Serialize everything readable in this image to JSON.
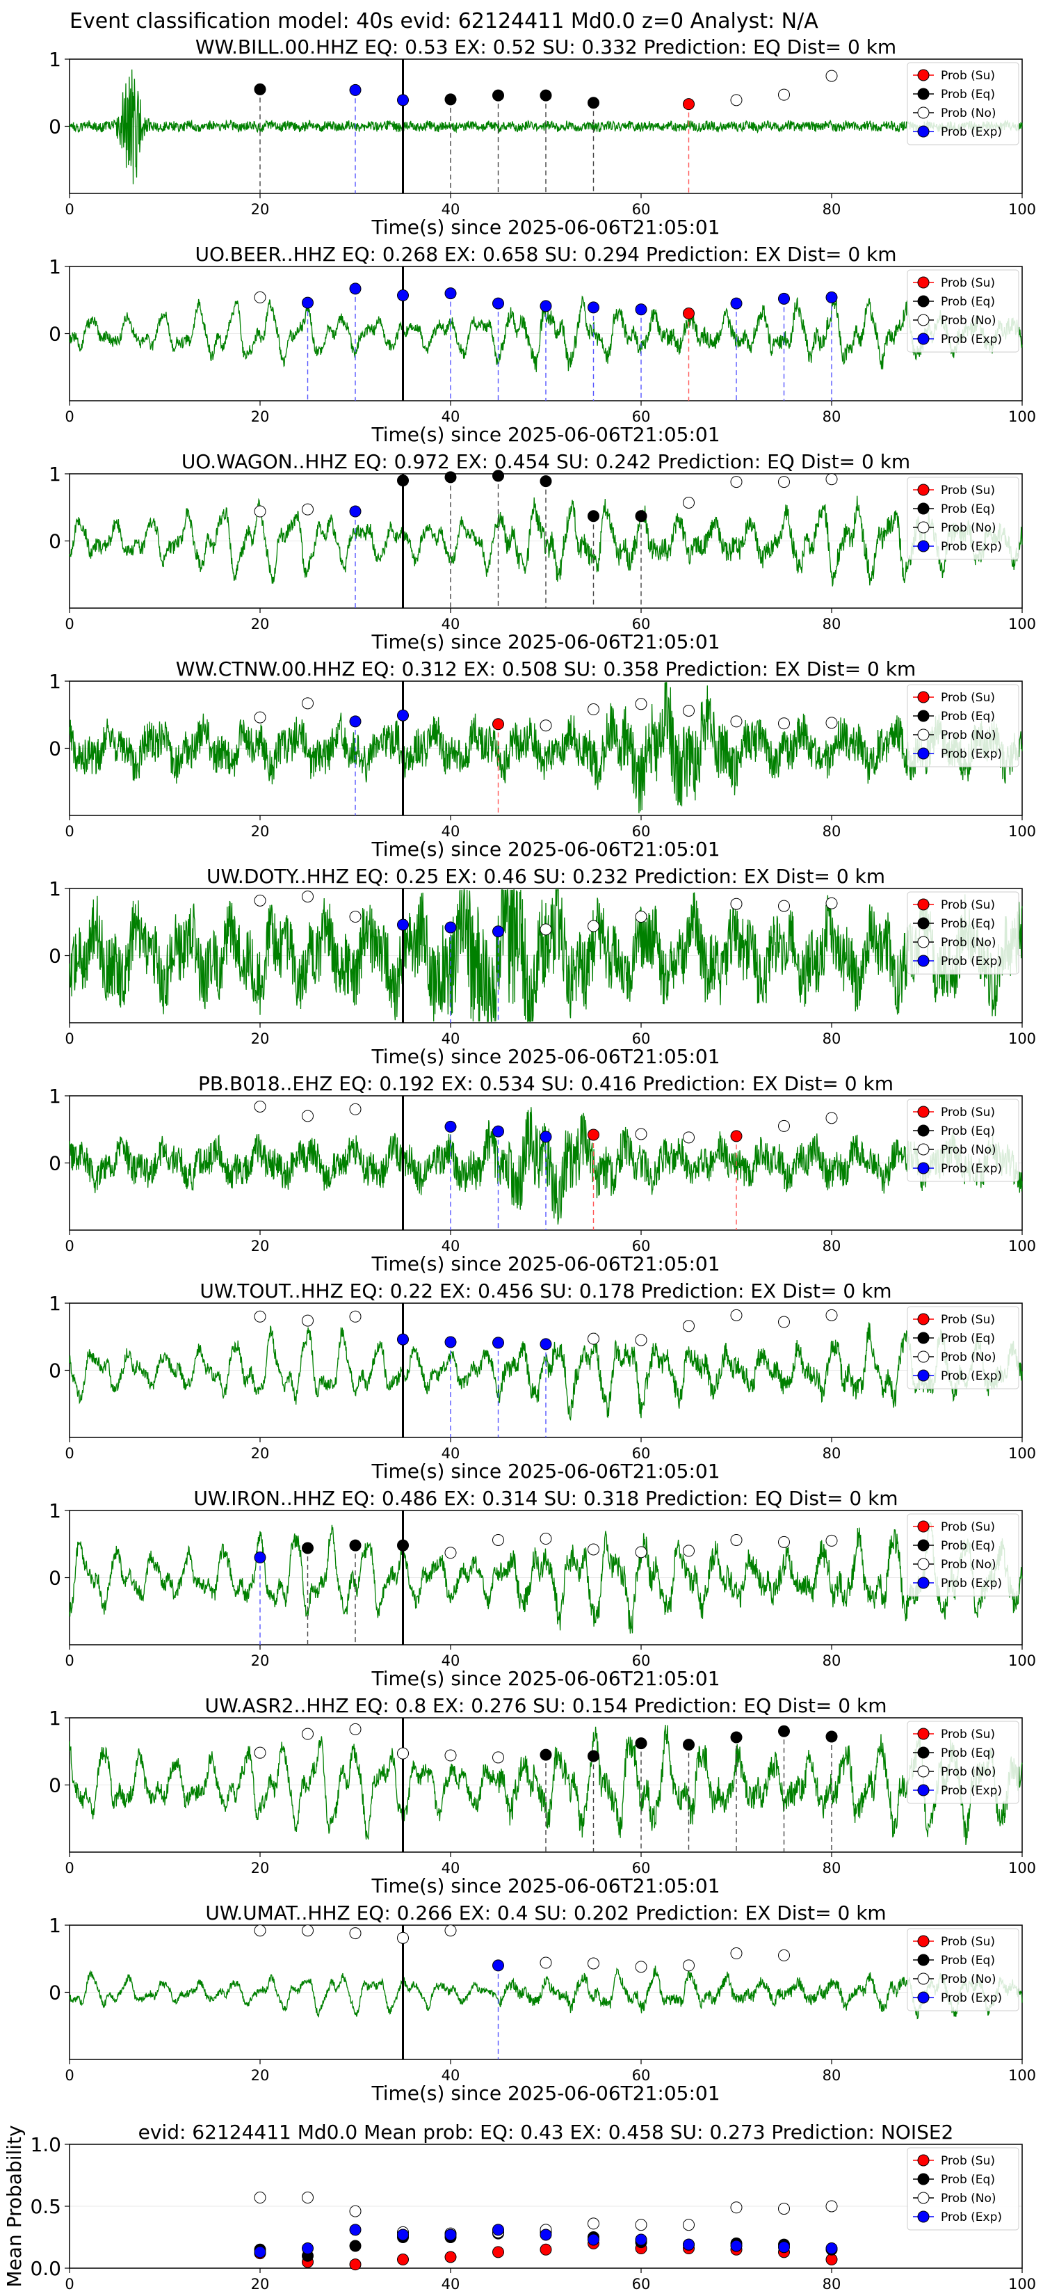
{
  "figure": {
    "suptitle": "Event classification model: 40s evid: 62124411 Md0.0 z=0 Analyst: N/A"
  },
  "legend": {
    "placement": "top-right",
    "entries": [
      {
        "label": "Prob (Su)",
        "color": "#ff0000",
        "fill": true
      },
      {
        "label": "Prob (Eq)",
        "color": "#000000",
        "fill": true
      },
      {
        "label": "Prob (No)",
        "color": "#ffffff",
        "fill": false
      },
      {
        "label": "Prob (Exp)",
        "color": "#0000ff",
        "fill": true
      }
    ]
  },
  "colors": {
    "waveform": "#008000",
    "Su": "#ff0000",
    "Eq": "#000000",
    "No": "#ffffff",
    "Exp": "#0000ff",
    "pick_line": "#000000"
  },
  "chart_data": [
    {
      "type": "line",
      "title": "WW.BILL.00.HHZ   EQ: 0.53  EX: 0.52  SU: 0.332   Prediction: EQ    Dist= 0 km",
      "xlabel": "Time(s) since 2025-06-06T21:05:01",
      "ylabel": "",
      "xlim": [
        0,
        100
      ],
      "ylim": [
        -1,
        1
      ],
      "xticks": [
        0,
        20,
        40,
        60,
        80,
        100
      ],
      "yticks": [
        0,
        1
      ],
      "pick_time": 35,
      "waveform": {
        "style": "burst",
        "amp": 0.07,
        "burst_at": 6.5
      },
      "points": [
        {
          "x": 20,
          "y": 0.55,
          "cls": "Eq"
        },
        {
          "x": 30,
          "y": 0.54,
          "cls": "Exp"
        },
        {
          "x": 35,
          "y": 0.39,
          "cls": "Exp"
        },
        {
          "x": 40,
          "y": 0.4,
          "cls": "Eq"
        },
        {
          "x": 45,
          "y": 0.46,
          "cls": "Eq"
        },
        {
          "x": 50,
          "y": 0.46,
          "cls": "Eq"
        },
        {
          "x": 55,
          "y": 0.35,
          "cls": "Eq"
        },
        {
          "x": 65,
          "y": 0.33,
          "cls": "Su"
        },
        {
          "x": 70,
          "y": 0.39,
          "cls": "No"
        },
        {
          "x": 75,
          "y": 0.47,
          "cls": "No"
        },
        {
          "x": 80,
          "y": 0.75,
          "cls": "No"
        }
      ]
    },
    {
      "type": "line",
      "title": "UO.BEER..HHZ   EQ: 0.268  EX: 0.658  SU: 0.294   Prediction: EX    Dist= 0 km",
      "xlabel": "Time(s) since 2025-06-06T21:05:01",
      "ylabel": "",
      "xlim": [
        0,
        100
      ],
      "ylim": [
        -1,
        1
      ],
      "xticks": [
        0,
        20,
        40,
        60,
        80,
        100
      ],
      "yticks": [
        0,
        1
      ],
      "pick_time": 35,
      "waveform": {
        "style": "oscillate",
        "amp": 0.45
      },
      "points": [
        {
          "x": 20,
          "y": 0.54,
          "cls": "No"
        },
        {
          "x": 25,
          "y": 0.46,
          "cls": "Exp"
        },
        {
          "x": 30,
          "y": 0.67,
          "cls": "Exp"
        },
        {
          "x": 35,
          "y": 0.57,
          "cls": "Exp"
        },
        {
          "x": 40,
          "y": 0.6,
          "cls": "Exp"
        },
        {
          "x": 45,
          "y": 0.45,
          "cls": "Exp"
        },
        {
          "x": 50,
          "y": 0.41,
          "cls": "Exp"
        },
        {
          "x": 55,
          "y": 0.39,
          "cls": "Exp"
        },
        {
          "x": 60,
          "y": 0.36,
          "cls": "Exp"
        },
        {
          "x": 65,
          "y": 0.3,
          "cls": "Su"
        },
        {
          "x": 70,
          "y": 0.45,
          "cls": "Exp"
        },
        {
          "x": 75,
          "y": 0.52,
          "cls": "Exp"
        },
        {
          "x": 80,
          "y": 0.54,
          "cls": "Exp"
        }
      ]
    },
    {
      "type": "line",
      "title": "UO.WAGON..HHZ   EQ: 0.972  EX: 0.454  SU: 0.242   Prediction: EQ    Dist= 0 km",
      "xlabel": "Time(s) since 2025-06-06T21:05:01",
      "ylabel": "",
      "xlim": [
        0,
        100
      ],
      "ylim": [
        -1,
        1
      ],
      "xticks": [
        0,
        20,
        40,
        60,
        80,
        100
      ],
      "yticks": [
        0,
        1
      ],
      "pick_time": 35,
      "waveform": {
        "style": "oscillate",
        "amp": 0.55
      },
      "points": [
        {
          "x": 20,
          "y": 0.44,
          "cls": "No"
        },
        {
          "x": 25,
          "y": 0.47,
          "cls": "No"
        },
        {
          "x": 30,
          "y": 0.44,
          "cls": "Exp"
        },
        {
          "x": 35,
          "y": 0.9,
          "cls": "Eq"
        },
        {
          "x": 40,
          "y": 0.95,
          "cls": "Eq"
        },
        {
          "x": 45,
          "y": 0.97,
          "cls": "Eq"
        },
        {
          "x": 50,
          "y": 0.89,
          "cls": "Eq"
        },
        {
          "x": 55,
          "y": 0.37,
          "cls": "Eq"
        },
        {
          "x": 60,
          "y": 0.37,
          "cls": "Eq"
        },
        {
          "x": 65,
          "y": 0.57,
          "cls": "No"
        },
        {
          "x": 70,
          "y": 0.88,
          "cls": "No"
        },
        {
          "x": 75,
          "y": 0.88,
          "cls": "No"
        },
        {
          "x": 80,
          "y": 0.92,
          "cls": "No"
        }
      ]
    },
    {
      "type": "line",
      "title": "WW.CTNW.00.HHZ   EQ: 0.312  EX: 0.508  SU: 0.358   Prediction: EX    Dist= 0 km",
      "xlabel": "Time(s) since 2025-06-06T21:05:01",
      "ylabel": "",
      "xlim": [
        0,
        100
      ],
      "ylim": [
        -1,
        1
      ],
      "xticks": [
        0,
        20,
        40,
        60,
        80,
        100
      ],
      "yticks": [
        0,
        1
      ],
      "pick_time": 35,
      "waveform": {
        "style": "noisy",
        "amp": 0.35,
        "burst_at": 63
      },
      "points": [
        {
          "x": 20,
          "y": 0.46,
          "cls": "No"
        },
        {
          "x": 25,
          "y": 0.67,
          "cls": "No"
        },
        {
          "x": 30,
          "y": 0.4,
          "cls": "Exp"
        },
        {
          "x": 35,
          "y": 0.49,
          "cls": "Exp"
        },
        {
          "x": 45,
          "y": 0.36,
          "cls": "Su"
        },
        {
          "x": 50,
          "y": 0.34,
          "cls": "No"
        },
        {
          "x": 55,
          "y": 0.58,
          "cls": "No"
        },
        {
          "x": 60,
          "y": 0.66,
          "cls": "No"
        },
        {
          "x": 65,
          "y": 0.56,
          "cls": "No"
        },
        {
          "x": 70,
          "y": 0.4,
          "cls": "No"
        },
        {
          "x": 75,
          "y": 0.37,
          "cls": "No"
        },
        {
          "x": 80,
          "y": 0.38,
          "cls": "No"
        }
      ]
    },
    {
      "type": "line",
      "title": "UW.DOTY..HHZ   EQ: 0.25  EX: 0.46  SU: 0.232   Prediction: EX    Dist= 0 km",
      "xlabel": "Time(s) since 2025-06-06T21:05:01",
      "ylabel": "",
      "xlim": [
        0,
        100
      ],
      "ylim": [
        -1,
        1
      ],
      "xticks": [
        0,
        20,
        40,
        60,
        80,
        100
      ],
      "yticks": [
        0,
        1
      ],
      "pick_time": 35,
      "waveform": {
        "style": "noisy",
        "amp": 0.6,
        "burst_at": 45
      },
      "points": [
        {
          "x": 20,
          "y": 0.82,
          "cls": "No"
        },
        {
          "x": 25,
          "y": 0.88,
          "cls": "No"
        },
        {
          "x": 30,
          "y": 0.58,
          "cls": "No"
        },
        {
          "x": 35,
          "y": 0.46,
          "cls": "Exp"
        },
        {
          "x": 40,
          "y": 0.42,
          "cls": "Exp"
        },
        {
          "x": 45,
          "y": 0.36,
          "cls": "Exp"
        },
        {
          "x": 50,
          "y": 0.39,
          "cls": "No"
        },
        {
          "x": 55,
          "y": 0.44,
          "cls": "No"
        },
        {
          "x": 60,
          "y": 0.58,
          "cls": "No"
        },
        {
          "x": 70,
          "y": 0.77,
          "cls": "No"
        },
        {
          "x": 75,
          "y": 0.74,
          "cls": "No"
        },
        {
          "x": 80,
          "y": 0.78,
          "cls": "No"
        }
      ]
    },
    {
      "type": "line",
      "title": "PB.B018..EHZ   EQ: 0.192  EX: 0.534  SU: 0.416   Prediction: EX    Dist= 0 km",
      "xlabel": "Time(s) since 2025-06-06T21:05:01",
      "ylabel": "",
      "xlim": [
        0,
        100
      ],
      "ylim": [
        -1,
        1
      ],
      "xticks": [
        0,
        20,
        40,
        60,
        80,
        100
      ],
      "yticks": [
        0,
        1
      ],
      "pick_time": 35,
      "waveform": {
        "style": "noisy",
        "amp": 0.3,
        "burst_at": 50
      },
      "points": [
        {
          "x": 20,
          "y": 0.84,
          "cls": "No"
        },
        {
          "x": 25,
          "y": 0.7,
          "cls": "No"
        },
        {
          "x": 30,
          "y": 0.8,
          "cls": "No"
        },
        {
          "x": 40,
          "y": 0.54,
          "cls": "Exp"
        },
        {
          "x": 45,
          "y": 0.47,
          "cls": "Exp"
        },
        {
          "x": 50,
          "y": 0.39,
          "cls": "Exp"
        },
        {
          "x": 55,
          "y": 0.42,
          "cls": "Su"
        },
        {
          "x": 60,
          "y": 0.43,
          "cls": "No"
        },
        {
          "x": 65,
          "y": 0.38,
          "cls": "No"
        },
        {
          "x": 70,
          "y": 0.4,
          "cls": "Su"
        },
        {
          "x": 75,
          "y": 0.55,
          "cls": "No"
        },
        {
          "x": 80,
          "y": 0.67,
          "cls": "No"
        }
      ]
    },
    {
      "type": "line",
      "title": "UW.TOUT..HHZ   EQ: 0.22  EX: 0.456  SU: 0.178   Prediction: EX    Dist= 0 km",
      "xlabel": "Time(s) since 2025-06-06T21:05:01",
      "ylabel": "",
      "xlim": [
        0,
        100
      ],
      "ylim": [
        -1,
        1
      ],
      "xticks": [
        0,
        20,
        40,
        60,
        80,
        100
      ],
      "yticks": [
        0,
        1
      ],
      "pick_time": 35,
      "waveform": {
        "style": "oscillate",
        "amp": 0.55
      },
      "points": [
        {
          "x": 20,
          "y": 0.8,
          "cls": "No"
        },
        {
          "x": 25,
          "y": 0.74,
          "cls": "No"
        },
        {
          "x": 30,
          "y": 0.8,
          "cls": "No"
        },
        {
          "x": 35,
          "y": 0.46,
          "cls": "Exp"
        },
        {
          "x": 40,
          "y": 0.42,
          "cls": "Exp"
        },
        {
          "x": 45,
          "y": 0.41,
          "cls": "Exp"
        },
        {
          "x": 50,
          "y": 0.39,
          "cls": "Exp"
        },
        {
          "x": 55,
          "y": 0.47,
          "cls": "No"
        },
        {
          "x": 60,
          "y": 0.45,
          "cls": "No"
        },
        {
          "x": 65,
          "y": 0.66,
          "cls": "No"
        },
        {
          "x": 70,
          "y": 0.82,
          "cls": "No"
        },
        {
          "x": 75,
          "y": 0.72,
          "cls": "No"
        },
        {
          "x": 80,
          "y": 0.82,
          "cls": "No"
        }
      ]
    },
    {
      "type": "line",
      "title": "UW.IRON..HHZ   EQ: 0.486  EX: 0.314  SU: 0.318   Prediction: EQ    Dist= 0 km",
      "xlabel": "Time(s) since 2025-06-06T21:05:01",
      "ylabel": "",
      "xlim": [
        0,
        100
      ],
      "ylim": [
        -1,
        1
      ],
      "xticks": [
        0,
        20,
        40,
        60,
        80,
        100
      ],
      "yticks": [
        0,
        1
      ],
      "pick_time": 35,
      "waveform": {
        "style": "oscillate",
        "amp": 0.65
      },
      "points": [
        {
          "x": 20,
          "y": 0.3,
          "cls": "Exp"
        },
        {
          "x": 25,
          "y": 0.44,
          "cls": "Eq"
        },
        {
          "x": 30,
          "y": 0.48,
          "cls": "Eq"
        },
        {
          "x": 35,
          "y": 0.48,
          "cls": "Eq"
        },
        {
          "x": 40,
          "y": 0.37,
          "cls": "No"
        },
        {
          "x": 45,
          "y": 0.56,
          "cls": "No"
        },
        {
          "x": 50,
          "y": 0.58,
          "cls": "No"
        },
        {
          "x": 55,
          "y": 0.42,
          "cls": "No"
        },
        {
          "x": 60,
          "y": 0.38,
          "cls": "No"
        },
        {
          "x": 65,
          "y": 0.4,
          "cls": "No"
        },
        {
          "x": 70,
          "y": 0.56,
          "cls": "No"
        },
        {
          "x": 75,
          "y": 0.53,
          "cls": "No"
        },
        {
          "x": 80,
          "y": 0.55,
          "cls": "No"
        }
      ]
    },
    {
      "type": "line",
      "title": "UW.ASR2..HHZ   EQ: 0.8  EX: 0.276  SU: 0.154   Prediction: EQ    Dist= 0 km",
      "xlabel": "Time(s) since 2025-06-06T21:05:01",
      "ylabel": "",
      "xlim": [
        0,
        100
      ],
      "ylim": [
        -1,
        1
      ],
      "xticks": [
        0,
        20,
        40,
        60,
        80,
        100
      ],
      "yticks": [
        0,
        1
      ],
      "pick_time": 35,
      "waveform": {
        "style": "oscillate",
        "amp": 0.7
      },
      "points": [
        {
          "x": 20,
          "y": 0.48,
          "cls": "No"
        },
        {
          "x": 25,
          "y": 0.76,
          "cls": "No"
        },
        {
          "x": 30,
          "y": 0.83,
          "cls": "No"
        },
        {
          "x": 35,
          "y": 0.47,
          "cls": "No"
        },
        {
          "x": 40,
          "y": 0.44,
          "cls": "No"
        },
        {
          "x": 45,
          "y": 0.41,
          "cls": "No"
        },
        {
          "x": 50,
          "y": 0.45,
          "cls": "Eq"
        },
        {
          "x": 55,
          "y": 0.43,
          "cls": "Eq"
        },
        {
          "x": 60,
          "y": 0.62,
          "cls": "Eq"
        },
        {
          "x": 65,
          "y": 0.6,
          "cls": "Eq"
        },
        {
          "x": 70,
          "y": 0.71,
          "cls": "Eq"
        },
        {
          "x": 75,
          "y": 0.8,
          "cls": "Eq"
        },
        {
          "x": 80,
          "y": 0.72,
          "cls": "Eq"
        }
      ]
    },
    {
      "type": "line",
      "title": "UW.UMAT..HHZ   EQ: 0.266  EX: 0.4  SU: 0.202   Prediction: EX    Dist= 0 km",
      "xlabel": "Time(s) since 2025-06-06T21:05:01",
      "ylabel": "",
      "xlim": [
        0,
        100
      ],
      "ylim": [
        -1,
        1
      ],
      "xticks": [
        0,
        20,
        40,
        60,
        80,
        100
      ],
      "yticks": [
        0,
        1
      ],
      "pick_time": 35,
      "waveform": {
        "style": "oscillate",
        "amp": 0.3
      },
      "points": [
        {
          "x": 20,
          "y": 0.92,
          "cls": "No"
        },
        {
          "x": 25,
          "y": 0.92,
          "cls": "No"
        },
        {
          "x": 30,
          "y": 0.88,
          "cls": "No"
        },
        {
          "x": 35,
          "y": 0.81,
          "cls": "No"
        },
        {
          "x": 40,
          "y": 0.92,
          "cls": "No"
        },
        {
          "x": 45,
          "y": 0.4,
          "cls": "Exp"
        },
        {
          "x": 50,
          "y": 0.44,
          "cls": "No"
        },
        {
          "x": 55,
          "y": 0.43,
          "cls": "No"
        },
        {
          "x": 60,
          "y": 0.38,
          "cls": "No"
        },
        {
          "x": 65,
          "y": 0.4,
          "cls": "No"
        },
        {
          "x": 70,
          "y": 0.58,
          "cls": "No"
        },
        {
          "x": 75,
          "y": 0.55,
          "cls": "No"
        }
      ]
    },
    {
      "type": "scatter",
      "title": "evid: 62124411  Md0.0   Mean prob:   EQ: 0.43  EX: 0.458  SU: 0.273   Prediction: NOISE2",
      "xlabel": "",
      "ylabel": "Mean Probability",
      "xlim": [
        0,
        100
      ],
      "ylim": [
        0,
        1
      ],
      "xticks": [
        0,
        20,
        40,
        60,
        80,
        100
      ],
      "yticks": [
        0.0,
        0.5,
        1.0
      ],
      "ytick_labels": [
        "0.0",
        "0.5",
        "1.0"
      ],
      "series": [
        {
          "name": "Prob (Su)",
          "cls": "Su",
          "x": [
            20,
            25,
            30,
            35,
            40,
            45,
            50,
            55,
            60,
            65,
            70,
            75,
            80
          ],
          "values": [
            0.12,
            0.05,
            0.03,
            0.07,
            0.09,
            0.13,
            0.15,
            0.2,
            0.16,
            0.16,
            0.15,
            0.13,
            0.07
          ]
        },
        {
          "name": "Prob (Eq)",
          "cls": "Eq",
          "x": [
            20,
            25,
            30,
            35,
            40,
            45,
            50,
            55,
            60,
            65,
            70,
            75,
            80
          ],
          "values": [
            0.15,
            0.1,
            0.18,
            0.25,
            0.25,
            0.28,
            0.29,
            0.25,
            0.21,
            0.19,
            0.2,
            0.19,
            0.15
          ]
        },
        {
          "name": "Prob (No)",
          "cls": "No",
          "x": [
            20,
            25,
            30,
            35,
            40,
            45,
            50,
            55,
            60,
            65,
            70,
            75,
            80
          ],
          "values": [
            0.57,
            0.57,
            0.46,
            0.29,
            0.28,
            0.29,
            0.31,
            0.36,
            0.35,
            0.35,
            0.49,
            0.48,
            0.5
          ]
        },
        {
          "name": "Prob (Exp)",
          "cls": "Exp",
          "x": [
            20,
            25,
            30,
            35,
            40,
            45,
            50,
            55,
            60,
            65,
            70,
            75,
            80
          ],
          "values": [
            0.13,
            0.16,
            0.31,
            0.27,
            0.27,
            0.31,
            0.27,
            0.23,
            0.23,
            0.19,
            0.18,
            0.17,
            0.16
          ]
        }
      ]
    }
  ]
}
